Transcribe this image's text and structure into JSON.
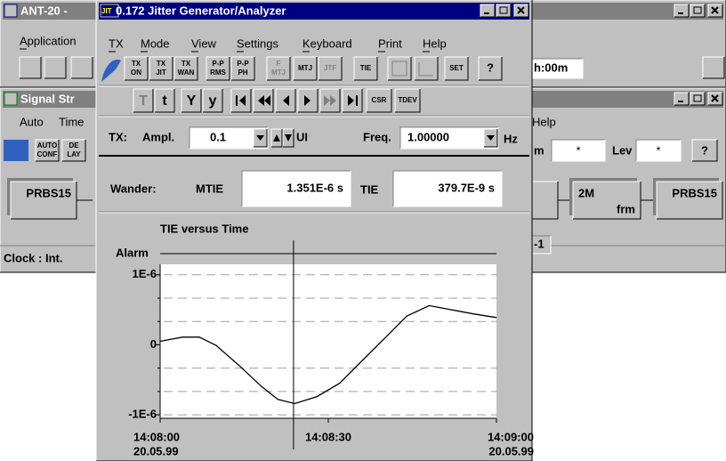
{
  "main_window": {
    "title": "ANT-20 -",
    "menu": [
      "Application"
    ],
    "field": "h:00m"
  },
  "signal_window": {
    "title": "Signal Str",
    "menu": [
      "Auto",
      "Time",
      "Help"
    ],
    "toolbar": [
      [
        "AUTO",
        "CONF"
      ],
      [
        "DE",
        "LAY"
      ]
    ],
    "field_labels": [
      "m",
      "Lev"
    ],
    "field_values": [
      "*",
      "*"
    ],
    "blocks": [
      {
        "label": "PRBS15"
      },
      {
        "label": "2M",
        "sub": "frm"
      },
      {
        "label": "PRBS15"
      }
    ],
    "tag": "-1",
    "status": "Clock : Int."
  },
  "dialog": {
    "icon": "JIT",
    "title": "0.172 Jitter Generator/Analyzer",
    "menu": [
      "TX",
      "Mode",
      "View",
      "Settings",
      "Keyboard",
      "Print",
      "Help"
    ],
    "toolbar1": [
      [
        "TX",
        "ON"
      ],
      [
        "TX",
        "JIT"
      ],
      [
        "TX",
        "WAN"
      ],
      [
        "P-P",
        "RMS"
      ],
      [
        "P-P",
        "PH"
      ],
      [
        "F",
        "MTJ"
      ],
      [
        "MTJ"
      ],
      [
        "JTF"
      ],
      [
        "TIE"
      ],
      [
        "SET"
      ],
      [
        "?"
      ]
    ],
    "toolbar2": [
      "T",
      "t",
      "Y",
      "y",
      "CSR",
      "TDEV"
    ],
    "tx": {
      "label": "TX:",
      "ampl_label": "Ampl.",
      "ampl": "0.1",
      "ampl_unit": "UI",
      "freq_label": "Freq.",
      "freq": "1.00000",
      "freq_unit": "Hz"
    },
    "wander": {
      "label": "Wander:",
      "mtie_label": "MTIE",
      "mtie": "1.351E-6 s",
      "tie_label": "TIE",
      "tie": "379.7E-9 s"
    },
    "chart": {
      "type": "line",
      "title": "TIE versus Time",
      "alarm_label": "Alarm",
      "x": [
        0,
        4,
        7,
        10,
        14,
        18,
        21,
        24,
        28,
        32,
        36,
        40,
        44,
        48,
        52,
        56,
        60
      ],
      "values": [
        5e-08,
        1.1e-07,
        1.1e-07,
        -1e-08,
        -2.9e-07,
        -5.9e-07,
        -7.8e-07,
        -8.4e-07,
        -7.4e-07,
        -5.5e-07,
        -2.3e-07,
        9e-08,
        4.1e-07,
        5.6e-07,
        5e-07,
        4.4e-07,
        3.9e-07
      ],
      "color": "#000000",
      "xlim": [
        0,
        60
      ],
      "ylim": [
        -1.05e-06,
        1.15e-06
      ],
      "yticks": [
        {
          "value": 1e-06,
          "label": "1E-6"
        },
        0,
        {
          "value": -1e-06,
          "label": "-1E-6"
        }
      ],
      "xticks": [
        {
          "value": 0,
          "label": "14:08:00",
          "date": "20.05.99"
        },
        {
          "value": 30,
          "label": "14:08:30"
        },
        {
          "value": 60,
          "label": "14:09:00",
          "date": "20.05.99"
        }
      ],
      "cursor": 23.8,
      "grid": true
    }
  }
}
